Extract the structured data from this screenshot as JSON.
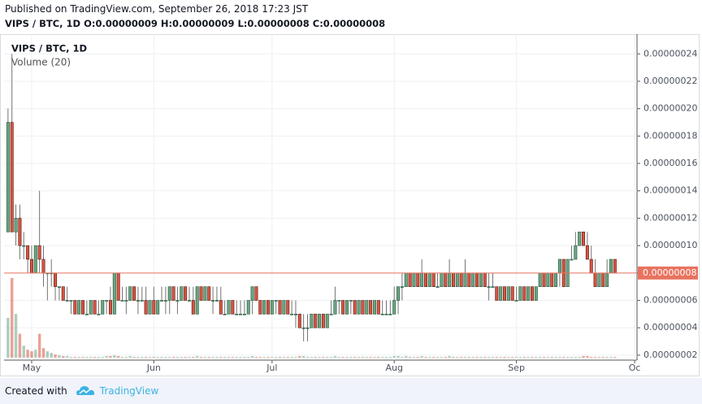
{
  "header": {
    "published": "Published on TradingView.com, September 26, 2018 17:23 JST",
    "ohlc": "VIPS / BTC, 1D  O:0.00000009 H:0.00000009 L:0.00000008 C:0.00000008"
  },
  "footer": {
    "created": "Created with",
    "brand": "TradingView"
  },
  "chart_data": {
    "type": "candlestick",
    "title": "VIPS / BTC, 1D",
    "subtitle": "Volume (20)",
    "up_color": "#6ba583",
    "down_color": "#d75442",
    "up_border": "#225437",
    "down_border": "#5b1a13",
    "last_price": {
      "value": 8e-08,
      "label": "0.00000008"
    },
    "last_color": "#e8735f",
    "grid": true,
    "xlim": [
      -1,
      159.6
    ],
    "xticks": [
      {
        "value": 6,
        "label": "May"
      },
      {
        "value": 37,
        "label": "Jun"
      },
      {
        "value": 67,
        "label": "Jul"
      },
      {
        "value": 98,
        "label": "Aug"
      },
      {
        "value": 129,
        "label": "Sep"
      },
      {
        "value": 159,
        "label": "Oc"
      }
    ],
    "ylim": [
      1.64e-08,
      2.544e-07
    ],
    "yticks": [
      {
        "value": 2e-08,
        "label": "0.00000002"
      },
      {
        "value": 4e-08,
        "label": "0.00000004"
      },
      {
        "value": 6e-08,
        "label": "0.00000006"
      },
      {
        "value": 8e-08,
        "label": "0.00000008"
      },
      {
        "value": 1e-07,
        "label": "0.00000010"
      },
      {
        "value": 1.2e-07,
        "label": "0.00000012"
      },
      {
        "value": 1.4e-07,
        "label": "0.00000014"
      },
      {
        "value": 1.6e-07,
        "label": "0.00000016"
      },
      {
        "value": 1.8e-07,
        "label": "0.00000018"
      },
      {
        "value": 2e-07,
        "label": "0.00000020"
      },
      {
        "value": 2.2e-07,
        "label": "0.00000022"
      },
      {
        "value": 2.4e-07,
        "label": "0.00000024"
      }
    ],
    "candles": [
      [
        1.1e-07,
        2e-07,
        1.1e-07,
        1.9e-07,
        50
      ],
      [
        1.9e-07,
        2.4e-07,
        1.1e-07,
        1.1e-07,
        100
      ],
      [
        1.1e-07,
        1.3e-07,
        1e-07,
        1.2e-07,
        55
      ],
      [
        1.2e-07,
        1.3e-07,
        9e-08,
        1e-07,
        30
      ],
      [
        1e-07,
        1.1e-07,
        9e-08,
        1e-07,
        15
      ],
      [
        1e-07,
        1e-07,
        8e-08,
        9e-08,
        10
      ],
      [
        9e-08,
        1e-07,
        8e-08,
        8e-08,
        8
      ],
      [
        8e-08,
        1e-07,
        8e-08,
        1e-07,
        10
      ],
      [
        1e-07,
        1.4e-07,
        8e-08,
        9e-08,
        30
      ],
      [
        9e-08,
        1e-07,
        7e-08,
        8e-08,
        12
      ],
      [
        8e-08,
        8e-08,
        6e-08,
        8e-08,
        8
      ],
      [
        8e-08,
        9e-08,
        7e-08,
        8e-08,
        6
      ],
      [
        8e-08,
        8e-08,
        6e-08,
        7e-08,
        4
      ],
      [
        7e-08,
        7e-08,
        6e-08,
        7e-08,
        3
      ],
      [
        7e-08,
        7e-08,
        6e-08,
        6e-08,
        2
      ],
      [
        6e-08,
        7e-08,
        6e-08,
        6e-08,
        2
      ],
      [
        6e-08,
        6e-08,
        5e-08,
        6e-08,
        1
      ],
      [
        6e-08,
        6e-08,
        5e-08,
        5e-08,
        1
      ],
      [
        5e-08,
        6e-08,
        5e-08,
        6e-08,
        1
      ],
      [
        6e-08,
        6e-08,
        5e-08,
        5e-08,
        1
      ],
      [
        5e-08,
        6e-08,
        5e-08,
        5e-08,
        1
      ],
      [
        5e-08,
        6e-08,
        5e-08,
        6e-08,
        1
      ],
      [
        6e-08,
        6e-08,
        5e-08,
        5e-08,
        1
      ],
      [
        5e-08,
        6e-08,
        5e-08,
        5e-08,
        1
      ],
      [
        5e-08,
        6e-08,
        5e-08,
        6e-08,
        1
      ],
      [
        6e-08,
        6e-08,
        5e-08,
        6e-08,
        2
      ],
      [
        6e-08,
        7e-08,
        5e-08,
        5e-08,
        2
      ],
      [
        5e-08,
        8e-08,
        5e-08,
        8e-08,
        3
      ],
      [
        8e-08,
        8e-08,
        6e-08,
        6e-08,
        2
      ],
      [
        6e-08,
        7e-08,
        6e-08,
        6e-08,
        1
      ],
      [
        6e-08,
        7e-08,
        5e-08,
        6e-08,
        1
      ],
      [
        6e-08,
        7e-08,
        6e-08,
        7e-08,
        2
      ],
      [
        7e-08,
        7e-08,
        6e-08,
        6e-08,
        1
      ],
      [
        6e-08,
        7e-08,
        5e-08,
        6e-08,
        1
      ],
      [
        6e-08,
        7e-08,
        6e-08,
        6e-08,
        1
      ],
      [
        6e-08,
        7e-08,
        5e-08,
        5e-08,
        1
      ],
      [
        5e-08,
        6e-08,
        5e-08,
        6e-08,
        1
      ],
      [
        6e-08,
        7e-08,
        5e-08,
        5e-08,
        1
      ],
      [
        5e-08,
        6e-08,
        5e-08,
        6e-08,
        1
      ],
      [
        6e-08,
        7e-08,
        6e-08,
        6e-08,
        1
      ],
      [
        6e-08,
        7e-08,
        5e-08,
        6e-08,
        1
      ],
      [
        6e-08,
        7e-08,
        5e-08,
        7e-08,
        1
      ],
      [
        7e-08,
        7e-08,
        6e-08,
        6e-08,
        1
      ],
      [
        6e-08,
        7e-08,
        5e-08,
        6e-08,
        1
      ],
      [
        6e-08,
        7e-08,
        6e-08,
        7e-08,
        1
      ],
      [
        7e-08,
        7e-08,
        6e-08,
        6e-08,
        1
      ],
      [
        6e-08,
        7e-08,
        6e-08,
        6e-08,
        1
      ],
      [
        6e-08,
        7e-08,
        5e-08,
        5e-08,
        1
      ],
      [
        5e-08,
        7e-08,
        5e-08,
        7e-08,
        2
      ],
      [
        7e-08,
        7e-08,
        6e-08,
        6e-08,
        1
      ],
      [
        6e-08,
        7e-08,
        6e-08,
        7e-08,
        1
      ],
      [
        7e-08,
        7e-08,
        6e-08,
        6e-08,
        1
      ],
      [
        6e-08,
        7e-08,
        5e-08,
        6e-08,
        1
      ],
      [
        6e-08,
        7e-08,
        6e-08,
        6e-08,
        1
      ],
      [
        6e-08,
        7e-08,
        5e-08,
        5e-08,
        1
      ],
      [
        5e-08,
        6e-08,
        5e-08,
        5e-08,
        1
      ],
      [
        5e-08,
        6e-08,
        5e-08,
        6e-08,
        1
      ],
      [
        6e-08,
        6e-08,
        5e-08,
        5e-08,
        1
      ],
      [
        5e-08,
        6e-08,
        5e-08,
        5e-08,
        1
      ],
      [
        5e-08,
        6e-08,
        5e-08,
        5e-08,
        1
      ],
      [
        5e-08,
        6e-08,
        5e-08,
        5e-08,
        1
      ],
      [
        5e-08,
        6e-08,
        5e-08,
        6e-08,
        1
      ],
      [
        6e-08,
        7e-08,
        5e-08,
        7e-08,
        2
      ],
      [
        7e-08,
        7e-08,
        6e-08,
        6e-08,
        1
      ],
      [
        6e-08,
        6e-08,
        5e-08,
        5e-08,
        1
      ],
      [
        5e-08,
        6e-08,
        5e-08,
        6e-08,
        1
      ],
      [
        6e-08,
        6e-08,
        5e-08,
        5e-08,
        1
      ],
      [
        5e-08,
        6e-08,
        5e-08,
        6e-08,
        1
      ],
      [
        6e-08,
        6e-08,
        5e-08,
        6e-08,
        1
      ],
      [
        6e-08,
        6e-08,
        5e-08,
        5e-08,
        1
      ],
      [
        5e-08,
        6e-08,
        5e-08,
        6e-08,
        1
      ],
      [
        6e-08,
        6e-08,
        5e-08,
        5e-08,
        1
      ],
      [
        5e-08,
        6e-08,
        5e-08,
        5e-08,
        1
      ],
      [
        5e-08,
        6e-08,
        4e-08,
        5e-08,
        1
      ],
      [
        5e-08,
        5e-08,
        4e-08,
        4e-08,
        2
      ],
      [
        4e-08,
        5e-08,
        3e-08,
        4e-08,
        2
      ],
      [
        4e-08,
        5e-08,
        3e-08,
        4e-08,
        1
      ],
      [
        4e-08,
        5e-08,
        4e-08,
        5e-08,
        1
      ],
      [
        5e-08,
        5e-08,
        4e-08,
        4e-08,
        1
      ],
      [
        4e-08,
        5e-08,
        4e-08,
        5e-08,
        1
      ],
      [
        5e-08,
        5e-08,
        4e-08,
        4e-08,
        1
      ],
      [
        4e-08,
        5e-08,
        4e-08,
        5e-08,
        1
      ],
      [
        5e-08,
        6e-08,
        5e-08,
        5e-08,
        1
      ],
      [
        5e-08,
        7e-08,
        5e-08,
        6e-08,
        2
      ],
      [
        6e-08,
        6e-08,
        5e-08,
        6e-08,
        1
      ],
      [
        6e-08,
        6e-08,
        5e-08,
        5e-08,
        1
      ],
      [
        5e-08,
        6e-08,
        5e-08,
        6e-08,
        1
      ],
      [
        6e-08,
        6e-08,
        5e-08,
        6e-08,
        1
      ],
      [
        6e-08,
        6e-08,
        5e-08,
        5e-08,
        1
      ],
      [
        5e-08,
        6e-08,
        5e-08,
        6e-08,
        1
      ],
      [
        6e-08,
        6e-08,
        5e-08,
        5e-08,
        1
      ],
      [
        5e-08,
        6e-08,
        5e-08,
        6e-08,
        1
      ],
      [
        6e-08,
        6e-08,
        5e-08,
        5e-08,
        1
      ],
      [
        5e-08,
        6e-08,
        5e-08,
        6e-08,
        1
      ],
      [
        6e-08,
        6e-08,
        5e-08,
        5e-08,
        1
      ],
      [
        5e-08,
        6e-08,
        5e-08,
        5e-08,
        1
      ],
      [
        5e-08,
        6e-08,
        5e-08,
        5e-08,
        1
      ],
      [
        5e-08,
        6e-08,
        5e-08,
        5e-08,
        1
      ],
      [
        5e-08,
        7e-08,
        5e-08,
        6e-08,
        2
      ],
      [
        6e-08,
        7e-08,
        5e-08,
        7e-08,
        2
      ],
      [
        7e-08,
        8e-08,
        6e-08,
        7e-08,
        1
      ],
      [
        7e-08,
        8e-08,
        7e-08,
        8e-08,
        2
      ],
      [
        8e-08,
        8e-08,
        7e-08,
        7e-08,
        1
      ],
      [
        7e-08,
        8e-08,
        7e-08,
        8e-08,
        1
      ],
      [
        8e-08,
        8e-08,
        7e-08,
        7e-08,
        1
      ],
      [
        7e-08,
        9e-08,
        7e-08,
        8e-08,
        2
      ],
      [
        8e-08,
        8e-08,
        7e-08,
        7e-08,
        1
      ],
      [
        7e-08,
        8e-08,
        7e-08,
        8e-08,
        1
      ],
      [
        8e-08,
        8e-08,
        7e-08,
        7e-08,
        1
      ],
      [
        7e-08,
        8e-08,
        7e-08,
        7e-08,
        1
      ],
      [
        7e-08,
        8e-08,
        7e-08,
        8e-08,
        1
      ],
      [
        8e-08,
        8e-08,
        7e-08,
        7e-08,
        1
      ],
      [
        7e-08,
        9e-08,
        7e-08,
        8e-08,
        2
      ],
      [
        8e-08,
        8e-08,
        7e-08,
        7e-08,
        1
      ],
      [
        7e-08,
        8e-08,
        7e-08,
        8e-08,
        1
      ],
      [
        8e-08,
        8e-08,
        7e-08,
        7e-08,
        1
      ],
      [
        7e-08,
        9e-08,
        7e-08,
        8e-08,
        1
      ],
      [
        8e-08,
        8e-08,
        7e-08,
        7e-08,
        1
      ],
      [
        7e-08,
        8e-08,
        7e-08,
        8e-08,
        1
      ],
      [
        8e-08,
        8e-08,
        7e-08,
        7e-08,
        1
      ],
      [
        7e-08,
        8e-08,
        7e-08,
        8e-08,
        1
      ],
      [
        8e-08,
        8e-08,
        7e-08,
        7e-08,
        1
      ],
      [
        7e-08,
        8e-08,
        6e-08,
        7e-08,
        1
      ],
      [
        7e-08,
        8e-08,
        7e-08,
        7e-08,
        1
      ],
      [
        7e-08,
        7e-08,
        6e-08,
        6e-08,
        1
      ],
      [
        6e-08,
        7e-08,
        6e-08,
        7e-08,
        1
      ],
      [
        7e-08,
        7e-08,
        6e-08,
        6e-08,
        1
      ],
      [
        6e-08,
        7e-08,
        6e-08,
        7e-08,
        1
      ],
      [
        7e-08,
        7e-08,
        6e-08,
        6e-08,
        1
      ],
      [
        6e-08,
        7e-08,
        6e-08,
        6e-08,
        1
      ],
      [
        6e-08,
        7e-08,
        6e-08,
        7e-08,
        1
      ],
      [
        7e-08,
        7e-08,
        6e-08,
        6e-08,
        1
      ],
      [
        6e-08,
        7e-08,
        6e-08,
        7e-08,
        1
      ],
      [
        7e-08,
        7e-08,
        6e-08,
        6e-08,
        1
      ],
      [
        6e-08,
        7e-08,
        6e-08,
        7e-08,
        1
      ],
      [
        7e-08,
        8e-08,
        7e-08,
        8e-08,
        1
      ],
      [
        8e-08,
        8e-08,
        7e-08,
        7e-08,
        1
      ],
      [
        7e-08,
        8e-08,
        7e-08,
        8e-08,
        1
      ],
      [
        8e-08,
        8e-08,
        7e-08,
        7e-08,
        1
      ],
      [
        7e-08,
        8e-08,
        7e-08,
        8e-08,
        1
      ],
      [
        8e-08,
        9e-08,
        7e-08,
        9e-08,
        1
      ],
      [
        9e-08,
        9e-08,
        7e-08,
        7e-08,
        1
      ],
      [
        7e-08,
        9e-08,
        7e-08,
        9e-08,
        1
      ],
      [
        9e-08,
        1e-07,
        9e-08,
        9e-08,
        1
      ],
      [
        9e-08,
        1.1e-07,
        9e-08,
        1e-07,
        1
      ],
      [
        1e-07,
        1.1e-07,
        1e-07,
        1.1e-07,
        1
      ],
      [
        1.1e-07,
        1.1e-07,
        1e-07,
        1e-07,
        2
      ],
      [
        1e-07,
        1.1e-07,
        9e-08,
        9e-08,
        2
      ],
      [
        9e-08,
        1e-07,
        8e-08,
        8e-08,
        1
      ],
      [
        8e-08,
        9e-08,
        7e-08,
        7e-08,
        1
      ],
      [
        7e-08,
        8e-08,
        7e-08,
        8e-08,
        1
      ],
      [
        8e-08,
        8e-08,
        7e-08,
        7e-08,
        1
      ],
      [
        7e-08,
        9e-08,
        7e-08,
        8e-08,
        1
      ],
      [
        8e-08,
        9e-08,
        8e-08,
        9e-08,
        1
      ],
      [
        9e-08,
        9e-08,
        8e-08,
        8e-08,
        1
      ]
    ]
  }
}
